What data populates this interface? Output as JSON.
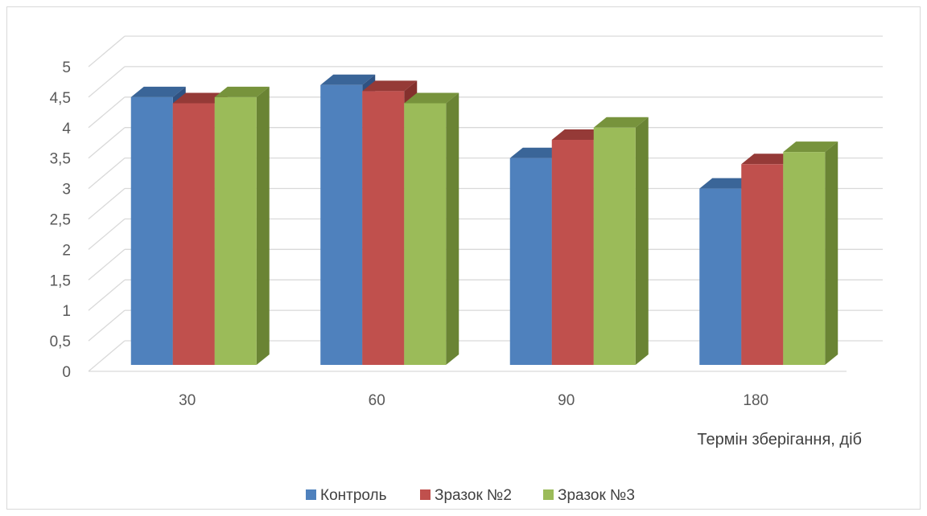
{
  "chart_data": {
    "type": "bar",
    "style": "3d-clustered-column",
    "title": "",
    "xlabel": "Термін зберігання, діб",
    "ylabel": "",
    "categories": [
      "30",
      "60",
      "90",
      "180"
    ],
    "y_ticks": [
      "0",
      "0,5",
      "1",
      "1,5",
      "2",
      "2,5",
      "3",
      "3,5",
      "4",
      "4,5",
      "5"
    ],
    "ylim": [
      0,
      5
    ],
    "grid": true,
    "legend_position": "bottom",
    "series": [
      {
        "name": "Контроль",
        "values": [
          4.5,
          4.7,
          3.5,
          3.0
        ],
        "color": "#4f81bd",
        "color_top": "#3a6598",
        "color_side": "#2f5282"
      },
      {
        "name": "Зразок №2",
        "values": [
          4.4,
          4.6,
          3.8,
          3.4
        ],
        "color": "#c0504d",
        "color_top": "#953a37",
        "color_side": "#84302d"
      },
      {
        "name": "Зразок №3",
        "values": [
          4.5,
          4.4,
          4.0,
          3.6
        ],
        "color": "#9bbb59",
        "color_top": "#77933c",
        "color_side": "#6a8434"
      }
    ]
  }
}
